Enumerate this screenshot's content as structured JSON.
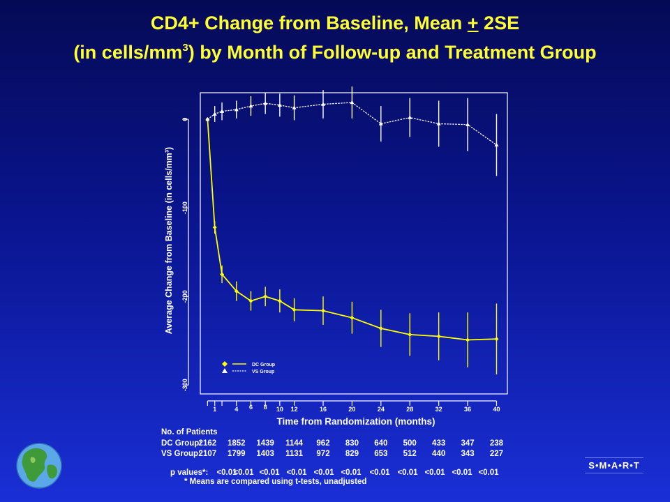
{
  "title_line1_pre": "CD4+ Change from Baseline, Mean ",
  "title_line1_pm": "+",
  "title_line1_post": " 2SE",
  "title_line2_pre": "(in cells/mm",
  "title_line2_sup": "3",
  "title_line2_post": ") by Month of Follow-up and Treatment Group",
  "chart_data": {
    "type": "line",
    "xlabel": "Time from Randomization (months)",
    "ylabel": "Average Change from Baseline (in cells/mm³)",
    "x_ticks": [
      1,
      4,
      6,
      8,
      10,
      12,
      16,
      20,
      24,
      28,
      32,
      36,
      40
    ],
    "y_ticks": [
      0,
      -100,
      -200,
      -300
    ],
    "ylim": [
      -310,
      30
    ],
    "grid": false,
    "legend_position": "bottom-left",
    "series": [
      {
        "name": "DC Group",
        "color": "#ffff00",
        "marker": "diamond",
        "points": [
          {
            "x": 0,
            "y": 0
          },
          {
            "x": 1,
            "y": -122,
            "err": 7
          },
          {
            "x": 2,
            "y": -175,
            "err": 10
          },
          {
            "x": 4,
            "y": -194,
            "err": 11
          },
          {
            "x": 6,
            "y": -205,
            "err": 11
          },
          {
            "x": 8,
            "y": -200,
            "err": 11
          },
          {
            "x": 10,
            "y": -205,
            "err": 13
          },
          {
            "x": 12,
            "y": -215,
            "err": 13
          },
          {
            "x": 16,
            "y": -216,
            "err": 16
          },
          {
            "x": 20,
            "y": -224,
            "err": 18
          },
          {
            "x": 24,
            "y": -236,
            "err": 21
          },
          {
            "x": 28,
            "y": -243,
            "err": 24
          },
          {
            "x": 32,
            "y": -245,
            "err": 27
          },
          {
            "x": 36,
            "y": -249,
            "err": 31
          },
          {
            "x": 40,
            "y": -248,
            "err": 40
          }
        ]
      },
      {
        "name": "VS Group",
        "color": "#ffffff",
        "marker": "triangle",
        "points": [
          {
            "x": 0,
            "y": 0
          },
          {
            "x": 1,
            "y": 6,
            "err": 9
          },
          {
            "x": 2,
            "y": 9,
            "err": 10
          },
          {
            "x": 4,
            "y": 11,
            "err": 10
          },
          {
            "x": 6,
            "y": 15,
            "err": 11
          },
          {
            "x": 8,
            "y": 18,
            "err": 12
          },
          {
            "x": 10,
            "y": 16,
            "err": 13
          },
          {
            "x": 12,
            "y": 13,
            "err": 14
          },
          {
            "x": 16,
            "y": 17,
            "err": 16
          },
          {
            "x": 20,
            "y": 19,
            "err": 18
          },
          {
            "x": 24,
            "y": -5,
            "err": 20
          },
          {
            "x": 28,
            "y": 2,
            "err": 22
          },
          {
            "x": 32,
            "y": -5,
            "err": 26
          },
          {
            "x": 36,
            "y": -6,
            "err": 30
          },
          {
            "x": 40,
            "y": -29,
            "err": 35
          }
        ]
      }
    ]
  },
  "table": {
    "heading": "No. of Patients",
    "dc_label": "DC Group:",
    "vs_label": "VS Group:",
    "p_label": "p values*:",
    "dc_counts": [
      "2162",
      "1852",
      "1439",
      "1144",
      "962",
      "830",
      "640",
      "500",
      "433",
      "347",
      "238"
    ],
    "vs_counts": [
      "2107",
      "1799",
      "1403",
      "1131",
      "972",
      "829",
      "653",
      "512",
      "440",
      "343",
      "227"
    ],
    "p_values": [
      "<0.01",
      "<0.01",
      "<0.01",
      "<0.01",
      "<0.01",
      "<0.01",
      "<0.01",
      "<0.01",
      "<0.01",
      "<0.01",
      "<0.01"
    ]
  },
  "footnote": "* Means are compared using t-tests, unadjusted",
  "logo_text": "S•M•A•R•T"
}
